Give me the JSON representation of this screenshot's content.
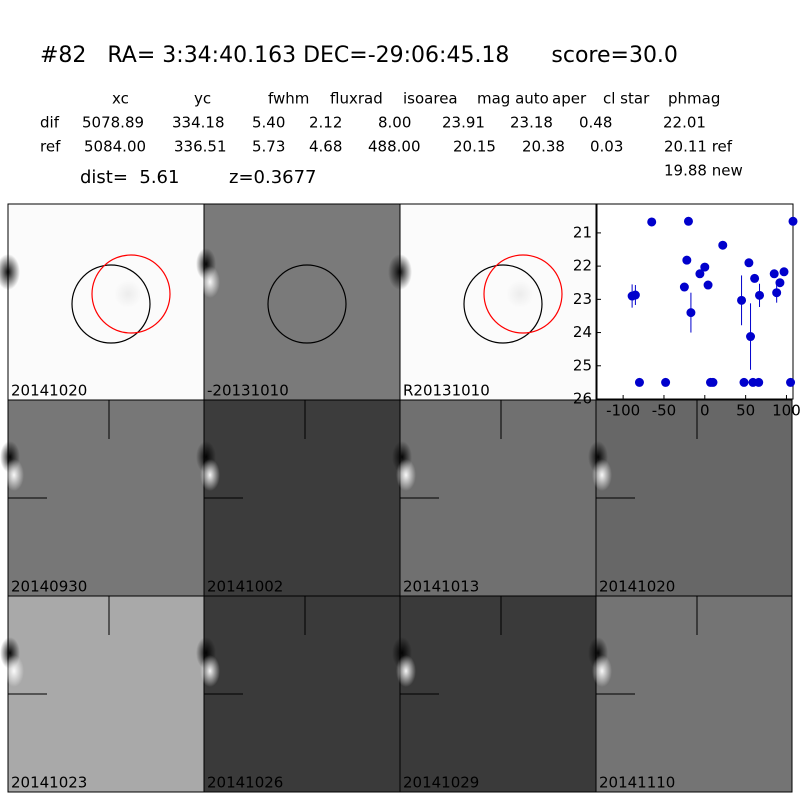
{
  "header": {
    "title": "#82   RA= 3:34:40.163 DEC=-29:06:45.18      score=30.0"
  },
  "table": {
    "columns": [
      "xc",
      "yc",
      "fwhm",
      "fluxrad",
      "isoarea",
      "mag auto",
      "aper",
      "cl star",
      "phmag"
    ],
    "rows": [
      [
        "dif",
        "5078.89",
        "334.18",
        "5.40",
        "2.12",
        "8.00",
        "23.91",
        "23.18",
        "0.48",
        "22.01"
      ],
      [
        "ref",
        "5084.00",
        "336.51",
        "5.73",
        "4.68",
        "488.00",
        "20.15",
        "20.38",
        "0.03",
        "20.11 ref"
      ]
    ],
    "extra": "19.88 new"
  },
  "dist": "dist=  5.61",
  "redshift": "z=0.3677",
  "panels": [
    {
      "label": "20141020",
      "color": "#000000"
    },
    {
      "label": "-20131010",
      "color": "#000000"
    },
    {
      "label": "R20131010",
      "color": "#000000"
    },
    {
      "label": "20140930",
      "color": "#000000"
    },
    {
      "label": "20141002",
      "color": "#000000"
    },
    {
      "label": "20141013",
      "color": "#000000"
    },
    {
      "label": "20141020",
      "color": "#ff0000"
    },
    {
      "label": "20141023",
      "color": "#000000"
    },
    {
      "label": "20141026",
      "color": "#000000"
    },
    {
      "label": "20141029",
      "color": "#000000"
    },
    {
      "label": "20141110",
      "color": "#000000"
    }
  ],
  "chart_data": {
    "type": "scatter",
    "xlim": [
      -132,
      108
    ],
    "ylim": [
      26,
      20.13
    ],
    "xticks": [
      -100,
      -50,
      0,
      50,
      100
    ],
    "yticks": [
      21,
      22,
      23,
      24,
      25,
      26
    ],
    "series": [
      {
        "color": "#0000cc",
        "x": [
          -89,
          -85,
          -80,
          -65,
          -48,
          -22,
          -25,
          -20,
          -17,
          -6,
          0,
          4,
          7,
          10,
          22,
          45,
          48,
          54,
          56,
          59,
          61,
          66,
          67,
          85,
          88,
          92,
          97,
          105,
          108
        ],
        "values": [
          22.9,
          22.87,
          25.5,
          20.67,
          25.5,
          21.82,
          22.63,
          20.65,
          23.4,
          22.23,
          22.03,
          22.57,
          25.5,
          25.5,
          21.37,
          23.03,
          25.5,
          21.9,
          24.12,
          25.5,
          22.37,
          25.5,
          22.88,
          22.23,
          22.8,
          22.5,
          22.17,
          25.5,
          20.65
        ],
        "errors": [
          0.35,
          0.3,
          0.1,
          0.05,
          0.1,
          0.1,
          0.1,
          0.05,
          0.6,
          0.1,
          0.1,
          0.1,
          0.1,
          0.1,
          0.1,
          0.75,
          0.1,
          0.1,
          1.0,
          0.1,
          0.1,
          0.1,
          0.35,
          0.1,
          0.3,
          0.1,
          0.1,
          0.1,
          0.05
        ]
      }
    ]
  }
}
